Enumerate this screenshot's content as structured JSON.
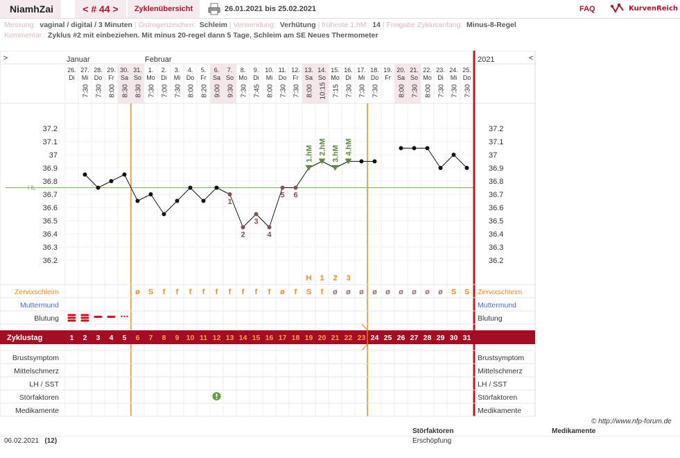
{
  "app": {
    "brand": "NiamhZai",
    "cycle_nav": "< # 44 >",
    "overview_tab": "Zyklenübersicht",
    "date_range": "26.01.2021 bis 25.02.2021",
    "faq": "FAQ",
    "logo_text": "KurvenReich"
  },
  "meta": {
    "measure_label": "Messung:",
    "measure_value": "vaginal / digital / 3 Minuten",
    "estrogen_label": "Östrogenzeichen:",
    "estrogen_value": "Schleim",
    "usage_label": "Verwendung:",
    "usage_value": "Verhütung",
    "earliest_label": "früheste 1.hM:",
    "earliest_value": "14",
    "release_label": "Freigabe Zyklusanfang:",
    "release_value": "Minus-8-Regel",
    "comment_label": "Kommentar:",
    "comment_value": "Zyklus #2  mit einbeziehen. Mit minus 20-regel dann 5 Tage,  Schleim am SE Neues Thermometer"
  },
  "chart_data": {
    "type": "line",
    "y_ticks": [
      "37.2",
      "37.1",
      "37",
      "36.9",
      "36.8",
      "36.7",
      "36.6",
      "36.5",
      "36.4",
      "36.3",
      "36.2"
    ],
    "ylim": [
      36.2,
      37.2
    ],
    "hl_value": 36.75,
    "hl_label": "HL",
    "months": [
      "Januar",
      "Februar"
    ],
    "year": "2021",
    "nav_left": ">",
    "nav_right": "<",
    "days": [
      {
        "date": "26.",
        "wd": "Di",
        "time": "",
        "cd": "1",
        "temp": null,
        "mucus": "",
        "bleed": "heavy",
        "weekend": false
      },
      {
        "date": "27.",
        "wd": "Mi",
        "time": "7:30",
        "cd": "2",
        "temp": 36.85,
        "mucus": "",
        "bleed": "heavy",
        "weekend": false
      },
      {
        "date": "28.",
        "wd": "Do",
        "time": "7:30",
        "cd": "3",
        "temp": 36.75,
        "mucus": "",
        "bleed": "medium",
        "weekend": false
      },
      {
        "date": "29.",
        "wd": "Fr",
        "time": "8:00",
        "cd": "4",
        "temp": 36.8,
        "mucus": "",
        "bleed": "medium",
        "weekend": false
      },
      {
        "date": "30.",
        "wd": "Sa",
        "time": "8:30",
        "cd": "5",
        "temp": 36.85,
        "mucus": "",
        "bleed": "spotting",
        "weekend": true
      },
      {
        "date": "31.",
        "wd": "So",
        "time": "8:30",
        "cd": "6",
        "temp": 36.65,
        "mucus": "ø",
        "bleed": "",
        "weekend": true
      },
      {
        "date": "1.",
        "wd": "Mo",
        "time": "7:30",
        "cd": "7",
        "temp": 36.7,
        "mucus": "S",
        "bleed": "",
        "weekend": false
      },
      {
        "date": "2.",
        "wd": "Di",
        "time": "7:00",
        "cd": "8",
        "temp": 36.55,
        "mucus": "f",
        "bleed": "",
        "weekend": false
      },
      {
        "date": "3.",
        "wd": "Mi",
        "time": "7:30",
        "cd": "9",
        "temp": 36.65,
        "mucus": "f",
        "bleed": "",
        "weekend": false
      },
      {
        "date": "4.",
        "wd": "Do",
        "time": "8:00",
        "cd": "10",
        "temp": 36.75,
        "mucus": "f",
        "bleed": "",
        "weekend": false
      },
      {
        "date": "5.",
        "wd": "Fr",
        "time": "8:20",
        "cd": "11",
        "temp": 36.65,
        "mucus": "f",
        "bleed": "",
        "weekend": false
      },
      {
        "date": "6.",
        "wd": "Sa",
        "time": "9:00",
        "cd": "12",
        "temp": 36.75,
        "mucus": "f",
        "bleed": "",
        "weekend": true
      },
      {
        "date": "7.",
        "wd": "So",
        "time": "9:30",
        "cd": "13",
        "temp": 36.7,
        "mucus": "f",
        "bleed": "",
        "weekend": true
      },
      {
        "date": "8.",
        "wd": "Mo",
        "time": "7:30",
        "cd": "14",
        "temp": 36.45,
        "mucus": "f",
        "bleed": "",
        "weekend": false
      },
      {
        "date": "9.",
        "wd": "Di",
        "time": "7:45",
        "cd": "15",
        "temp": 36.55,
        "mucus": "f",
        "bleed": "",
        "weekend": false
      },
      {
        "date": "10.",
        "wd": "Mi",
        "time": "8:00",
        "cd": "16",
        "temp": 36.45,
        "mucus": "f",
        "bleed": "",
        "weekend": false
      },
      {
        "date": "11.",
        "wd": "Do",
        "time": "7:30",
        "cd": "17",
        "temp": 36.75,
        "mucus": "ø",
        "bleed": "",
        "weekend": false
      },
      {
        "date": "12.",
        "wd": "Fr",
        "time": "7:30",
        "cd": "18",
        "temp": 36.75,
        "mucus": "f",
        "bleed": "",
        "weekend": false
      },
      {
        "date": "13.",
        "wd": "Sa",
        "time": "8:00",
        "cd": "19",
        "temp": 36.9,
        "mucus": "S",
        "bleed": "",
        "weekend": true
      },
      {
        "date": "14.",
        "wd": "So",
        "time": "10:15",
        "cd": "20",
        "temp": 36.95,
        "mucus": "f",
        "bleed": "",
        "weekend": true
      },
      {
        "date": "15.",
        "wd": "Mo",
        "time": "7:15",
        "cd": "21",
        "temp": 36.9,
        "mucus": "ø",
        "bleed": "",
        "weekend": false
      },
      {
        "date": "16.",
        "wd": "Di",
        "time": "7:30",
        "cd": "22",
        "temp": 36.95,
        "mucus": "ø",
        "bleed": "",
        "weekend": false
      },
      {
        "date": "17.",
        "wd": "Mi",
        "time": "7:30",
        "cd": "23",
        "temp": 36.95,
        "mucus": "ø",
        "bleed": "",
        "weekend": false
      },
      {
        "date": "18.",
        "wd": "Do",
        "time": "7:30",
        "cd": "24",
        "temp": 36.95,
        "mucus": "ø",
        "bleed": "",
        "weekend": false
      },
      {
        "date": "19.",
        "wd": "Fr",
        "time": "",
        "cd": "25",
        "temp": null,
        "mucus": "ø",
        "bleed": "",
        "weekend": false
      },
      {
        "date": "20.",
        "wd": "Sa",
        "time": "8:00",
        "cd": "26",
        "temp": 37.05,
        "mucus": "ø",
        "bleed": "",
        "weekend": true
      },
      {
        "date": "21.",
        "wd": "So",
        "time": "7:30",
        "cd": "27",
        "temp": 37.05,
        "mucus": "ø",
        "bleed": "",
        "weekend": true
      },
      {
        "date": "22.",
        "wd": "Mo",
        "time": "8:00",
        "cd": "28",
        "temp": 37.05,
        "mucus": "ø",
        "bleed": "",
        "weekend": false
      },
      {
        "date": "23.",
        "wd": "Di",
        "time": "7:30",
        "cd": "29",
        "temp": 36.9,
        "mucus": "ø",
        "bleed": "",
        "weekend": false
      },
      {
        "date": "24.",
        "wd": "Mi",
        "time": "7:30",
        "cd": "30",
        "temp": 37.0,
        "mucus": "S",
        "bleed": "",
        "weekend": false
      },
      {
        "date": "25.",
        "wd": "Do",
        "time": "7:30",
        "cd": "31",
        "temp": 36.9,
        "mucus": "S",
        "bleed": "",
        "weekend": false
      }
    ],
    "low_marks": [
      {
        "day": 12,
        "label": "1"
      },
      {
        "day": 13,
        "label": "2"
      },
      {
        "day": 14,
        "label": "3"
      },
      {
        "day": 15,
        "label": "4"
      },
      {
        "day": 16,
        "label": "5"
      },
      {
        "day": 17,
        "label": "6"
      }
    ],
    "high_marks": [
      {
        "day": 18,
        "label": "1.hM"
      },
      {
        "day": 19,
        "label": "2.hM"
      },
      {
        "day": 20,
        "label": "3.hM"
      },
      {
        "day": 21,
        "label": "4.hM"
      }
    ],
    "mucus_peak": [
      {
        "day": 18,
        "label": "H"
      },
      {
        "day": 19,
        "label": "1"
      },
      {
        "day": 20,
        "label": "2"
      },
      {
        "day": 21,
        "label": "3"
      }
    ],
    "row_labels": [
      "Zervixschleim",
      "Muttermund",
      "Blutung"
    ],
    "cycle_day_label": "Zyklustag",
    "bottom_rows": [
      "Brustsymptom",
      "Mittelschmerz",
      "LH / SST",
      "Störfaktoren",
      "Medikamente"
    ],
    "disturbance_day": 11,
    "colors": {
      "accent": "#a50d24",
      "orange": "#f28a1e",
      "hl_line": "#7ab05a",
      "high_marker": "#5e8a3c",
      "low_label": "#8a4e56",
      "line": "#111111",
      "weekend": "#f4e6e9",
      "muttermund": "#5566bb"
    }
  },
  "footer": {
    "date": "06.02.2021",
    "cycle_day": "(12)",
    "copyright": "© http://www.nfp-forum.de",
    "stoer_header": "Störfaktoren",
    "stoer_value": "Erschöpfung",
    "medi_header": "Medikamente"
  }
}
